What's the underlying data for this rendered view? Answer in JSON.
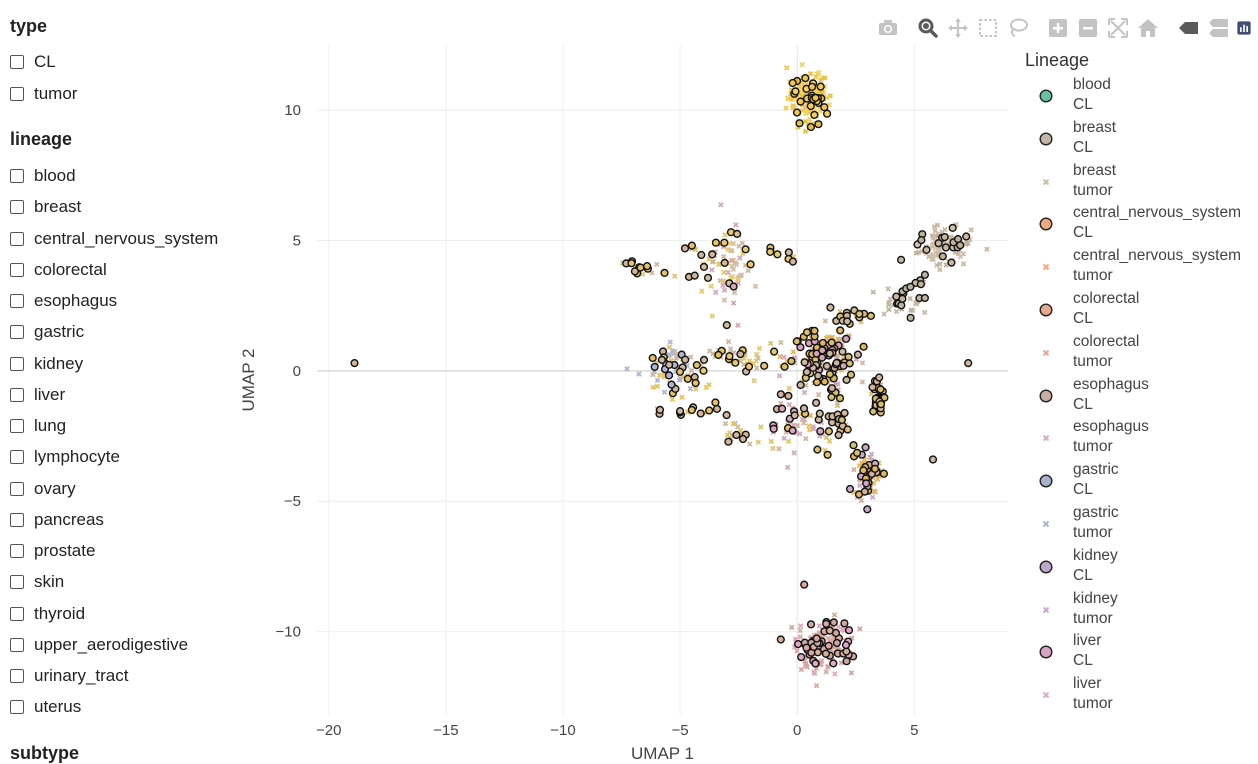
{
  "sidebar": {
    "type_title": "type",
    "type_options": [
      "CL",
      "tumor"
    ],
    "lineage_title": "lineage",
    "lineage_options": [
      "blood",
      "breast",
      "central_nervous_system",
      "colorectal",
      "esophagus",
      "gastric",
      "kidney",
      "liver",
      "lung",
      "lymphocyte",
      "ovary",
      "pancreas",
      "prostate",
      "skin",
      "thyroid",
      "upper_aerodigestive",
      "urinary_tract",
      "uterus"
    ],
    "subtype_title": "subtype"
  },
  "modebar": {
    "buttons": [
      "camera-icon",
      "zoom-icon",
      "pan-icon",
      "box-select-icon",
      "lasso-icon",
      "zoom-in-icon",
      "zoom-out-icon",
      "autoscale-icon",
      "reset-axes-icon",
      "hover-closest-icon",
      "hover-compare-icon",
      "plotly-logo-icon"
    ],
    "icon_color": "#c3c3c3",
    "active_color": "#5a5a5a"
  },
  "chart_data": {
    "type": "scatter",
    "xlabel": "UMAP 1",
    "ylabel": "UMAP 2",
    "xlim": [
      -20.5,
      9
    ],
    "ylim": [
      -13.2,
      12.5
    ],
    "xticks": [
      -20,
      -15,
      -10,
      -5,
      0,
      5
    ],
    "xtick_labels": [
      "−20",
      "−15",
      "−10",
      "−5",
      "0",
      "5"
    ],
    "yticks": [
      -10,
      -5,
      0,
      5,
      10
    ],
    "ytick_labels": [
      "−10",
      "−5",
      "0",
      "5",
      "10"
    ],
    "grid": true,
    "legend_title": "Lineage",
    "legend_position": "right",
    "series": [
      {
        "lineage": "blood",
        "type": "CL",
        "symbol": "circle",
        "color": "#66c2a5"
      },
      {
        "lineage": "breast",
        "type": "CL",
        "symbol": "circle",
        "color": "#c2b8a3"
      },
      {
        "lineage": "breast",
        "type": "tumor",
        "symbol": "x",
        "color": "#c9c09e"
      },
      {
        "lineage": "central_nervous_system",
        "type": "CL",
        "symbol": "circle",
        "color": "#f1a981"
      },
      {
        "lineage": "central_nervous_system",
        "type": "tumor",
        "symbol": "x",
        "color": "#f4a583"
      },
      {
        "lineage": "colorectal",
        "type": "CL",
        "symbol": "circle",
        "color": "#e8a88d"
      },
      {
        "lineage": "colorectal",
        "type": "tumor",
        "symbol": "x",
        "color": "#eda595"
      },
      {
        "lineage": "esophagus",
        "type": "CL",
        "symbol": "circle",
        "color": "#c9aea4"
      },
      {
        "lineage": "esophagus",
        "type": "tumor",
        "symbol": "x",
        "color": "#d8b0b2"
      },
      {
        "lineage": "gastric",
        "type": "CL",
        "symbol": "circle",
        "color": "#a7b1cc"
      },
      {
        "lineage": "gastric",
        "type": "tumor",
        "symbol": "x",
        "color": "#aab4d2"
      },
      {
        "lineage": "kidney",
        "type": "CL",
        "symbol": "circle",
        "color": "#bfa6cf"
      },
      {
        "lineage": "kidney",
        "type": "tumor",
        "symbol": "x",
        "color": "#cfa6d3"
      },
      {
        "lineage": "liver",
        "type": "CL",
        "symbol": "circle",
        "color": "#d9a2c3"
      },
      {
        "lineage": "liver",
        "type": "tumor",
        "symbol": "x",
        "color": "#e3a8cc"
      }
    ],
    "clusters": [
      {
        "x": 0.5,
        "y": 10.5,
        "sx": 0.45,
        "sy": 0.5,
        "n": 140,
        "colors": [
          "#f2c84b",
          "#e6c03f",
          "#f5d05a"
        ],
        "cl": 0.25
      },
      {
        "x": 6.3,
        "y": 4.8,
        "sx": 0.55,
        "sy": 0.35,
        "n": 110,
        "colors": [
          "#c9b7a0",
          "#d2c0aa",
          "#bfb09a"
        ],
        "cl": 0.15
      },
      {
        "x": 1.0,
        "y": 0.5,
        "sx": 0.75,
        "sy": 0.55,
        "n": 150,
        "colors": [
          "#d8c06a",
          "#e0b65a",
          "#cdb6a2",
          "#d4a4b8"
        ],
        "cl": 0.55
      },
      {
        "x": 3.5,
        "y": -1.0,
        "sx": 0.18,
        "sy": 0.35,
        "n": 45,
        "colors": [
          "#d6bf6a",
          "#cfb697"
        ],
        "cl": 0.7
      },
      {
        "x": 3.0,
        "y": -4.0,
        "sx": 0.3,
        "sy": 0.45,
        "n": 70,
        "colors": [
          "#e3b85c",
          "#d2ae9a",
          "#c8a8c8"
        ],
        "cl": 0.3
      },
      {
        "x": 1.1,
        "y": -10.5,
        "sx": 0.6,
        "sy": 0.5,
        "n": 170,
        "colors": [
          "#d8a79f",
          "#e0a8c4",
          "#d2b09a",
          "#c9a8a2"
        ],
        "cl": 0.25
      },
      {
        "x": -5.2,
        "y": 0.0,
        "sx": 0.55,
        "sy": 0.5,
        "n": 70,
        "colors": [
          "#e6c25e",
          "#cfb79e",
          "#b0b3d1"
        ],
        "cl": 0.3
      },
      {
        "x": -3.0,
        "y": 3.9,
        "sx": 0.45,
        "sy": 0.9,
        "n": 70,
        "colors": [
          "#e8c868",
          "#d3bc9e",
          "#d4a7b5"
        ],
        "cl": 0.15
      },
      {
        "x": -2.0,
        "y": 0.4,
        "sx": 0.8,
        "sy": 0.3,
        "n": 35,
        "colors": [
          "#e8c868",
          "#cfb89e"
        ],
        "cl": 0.35
      },
      {
        "x": -0.2,
        "y": -2.0,
        "sx": 0.6,
        "sy": 0.8,
        "n": 55,
        "colors": [
          "#e5c562",
          "#d0b59c",
          "#d3a7c0"
        ],
        "cl": 0.3
      },
      {
        "x": 2.1,
        "y": 2.1,
        "sx": 0.4,
        "sy": 0.15,
        "n": 25,
        "colors": [
          "#d9c06c",
          "#cfb79e"
        ],
        "cl": 0.5
      },
      {
        "x": 4.6,
        "y": 2.7,
        "sx": 0.45,
        "sy": 0.25,
        "n": 25,
        "colors": [
          "#bdb49f",
          "#c7b7a0"
        ],
        "cl": 0.5
      },
      {
        "x": -2.5,
        "y": -2.4,
        "sx": 0.4,
        "sy": 0.25,
        "n": 15,
        "colors": [
          "#e3c364",
          "#cfb79e"
        ],
        "cl": 0.4
      },
      {
        "x": 1.5,
        "y": -2.1,
        "sx": 0.25,
        "sy": 0.6,
        "n": 15,
        "colors": [
          "#d8bf6a",
          "#cfb79e"
        ],
        "cl": 0.6
      }
    ],
    "trails": [
      {
        "x1": -7.5,
        "y1": 4.1,
        "x2": -4.5,
        "y2": 3.5,
        "n": 20,
        "colors": [
          "#cfb79e",
          "#e3c364"
        ],
        "cl": 0.6
      },
      {
        "x1": -5.0,
        "y1": 5.0,
        "x2": -3.6,
        "y2": 4.2,
        "n": 10,
        "colors": [
          "#e3c364",
          "#cfb79e"
        ],
        "cl": 0.5
      },
      {
        "x1": -2.5,
        "y1": 4.8,
        "x2": -0.3,
        "y2": 4.4,
        "n": 12,
        "colors": [
          "#e8c868",
          "#cfb79e"
        ],
        "cl": 0.4
      },
      {
        "x1": -6.0,
        "y1": -1.5,
        "x2": -3.0,
        "y2": -1.6,
        "n": 14,
        "colors": [
          "#cfb79e",
          "#e3c364"
        ],
        "cl": 0.8
      },
      {
        "x1": -3.8,
        "y1": 0.7,
        "x2": -2.2,
        "y2": 0.7,
        "n": 10,
        "colors": [
          "#e3c364",
          "#cfb79e"
        ],
        "cl": 0.6
      },
      {
        "x1": 3.7,
        "y1": 2.3,
        "x2": 5.8,
        "y2": 3.8,
        "n": 16,
        "colors": [
          "#bdb49f",
          "#c7b7a0"
        ],
        "cl": 0.4
      },
      {
        "x1": 1.4,
        "y1": -0.6,
        "x2": 2.6,
        "y2": -3.2,
        "n": 14,
        "colors": [
          "#d8bf6a",
          "#cfb79e"
        ],
        "cl": 0.5
      },
      {
        "x1": 0.4,
        "y1": -1.8,
        "x2": 1.4,
        "y2": -3.2,
        "n": 10,
        "colors": [
          "#e3c364",
          "#d3a7c0"
        ],
        "cl": 0.4
      }
    ],
    "singles": [
      {
        "x": -18.9,
        "y": 0.3,
        "color": "#cfb79e",
        "cl": true
      },
      {
        "x": 7.3,
        "y": 0.3,
        "color": "#cfb79e",
        "cl": true
      },
      {
        "x": 5.8,
        "y": -3.4,
        "color": "#cfb79e",
        "cl": true
      },
      {
        "x": 0.3,
        "y": -8.2,
        "color": "#d8a79f",
        "cl": true
      },
      {
        "x": 0.1,
        "y": 9.5,
        "color": "#e6c03f",
        "cl": true
      },
      {
        "x": -4.5,
        "y": -1.5,
        "color": "#e3c364",
        "cl": true
      }
    ]
  }
}
